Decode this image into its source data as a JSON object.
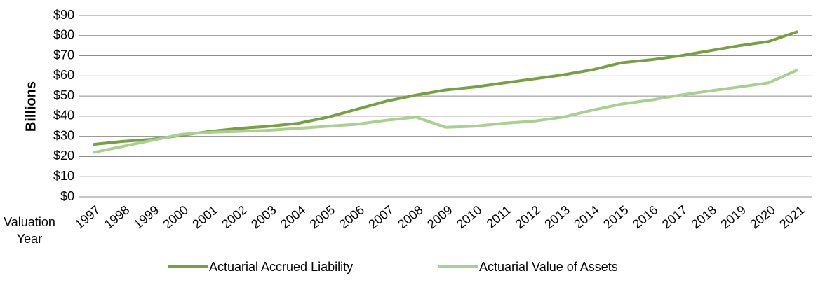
{
  "chart_data": {
    "type": "line",
    "y_label": "Billions",
    "x_label": "Valuation Year",
    "categories": [
      "1997",
      "1998",
      "1999",
      "2000",
      "2001",
      "2002",
      "2003",
      "2004",
      "2005",
      "2006",
      "2007",
      "2008",
      "2009",
      "2010",
      "2011",
      "2012",
      "2013",
      "2014",
      "2015",
      "2016",
      "2017",
      "2018",
      "2019",
      "2020",
      "2021"
    ],
    "series": [
      {
        "name": "Actuarial Accrued Liability",
        "color": "#77a043",
        "values": [
          26,
          27.5,
          28.5,
          30.5,
          32.5,
          34,
          35,
          36.5,
          39.5,
          43.5,
          47.5,
          50.5,
          53,
          54.5,
          56.5,
          58.5,
          60.5,
          63,
          66.5,
          68,
          70,
          72.5,
          75,
          77,
          82
        ]
      },
      {
        "name": "Actuarial Value of Assets",
        "color": "#a9d08e",
        "values": [
          22,
          25,
          28,
          31,
          32,
          32.5,
          33,
          34,
          35,
          36,
          38,
          39.5,
          34.5,
          35,
          36.5,
          37.5,
          39.5,
          43,
          46,
          48,
          50.5,
          52.5,
          54.5,
          56.5,
          63
        ]
      }
    ],
    "ylim": [
      0,
      90
    ],
    "yticks": [
      {
        "value": 0,
        "label": "$0"
      },
      {
        "value": 10,
        "label": "$10"
      },
      {
        "value": 20,
        "label": "$20"
      },
      {
        "value": 30,
        "label": "$30"
      },
      {
        "value": 40,
        "label": "$40"
      },
      {
        "value": 50,
        "label": "$50"
      },
      {
        "value": 60,
        "label": "$60"
      },
      {
        "value": 70,
        "label": "$70"
      },
      {
        "value": 80,
        "label": "$80"
      },
      {
        "value": 90,
        "label": "$90"
      }
    ],
    "grid": true,
    "legend": "bottom"
  }
}
